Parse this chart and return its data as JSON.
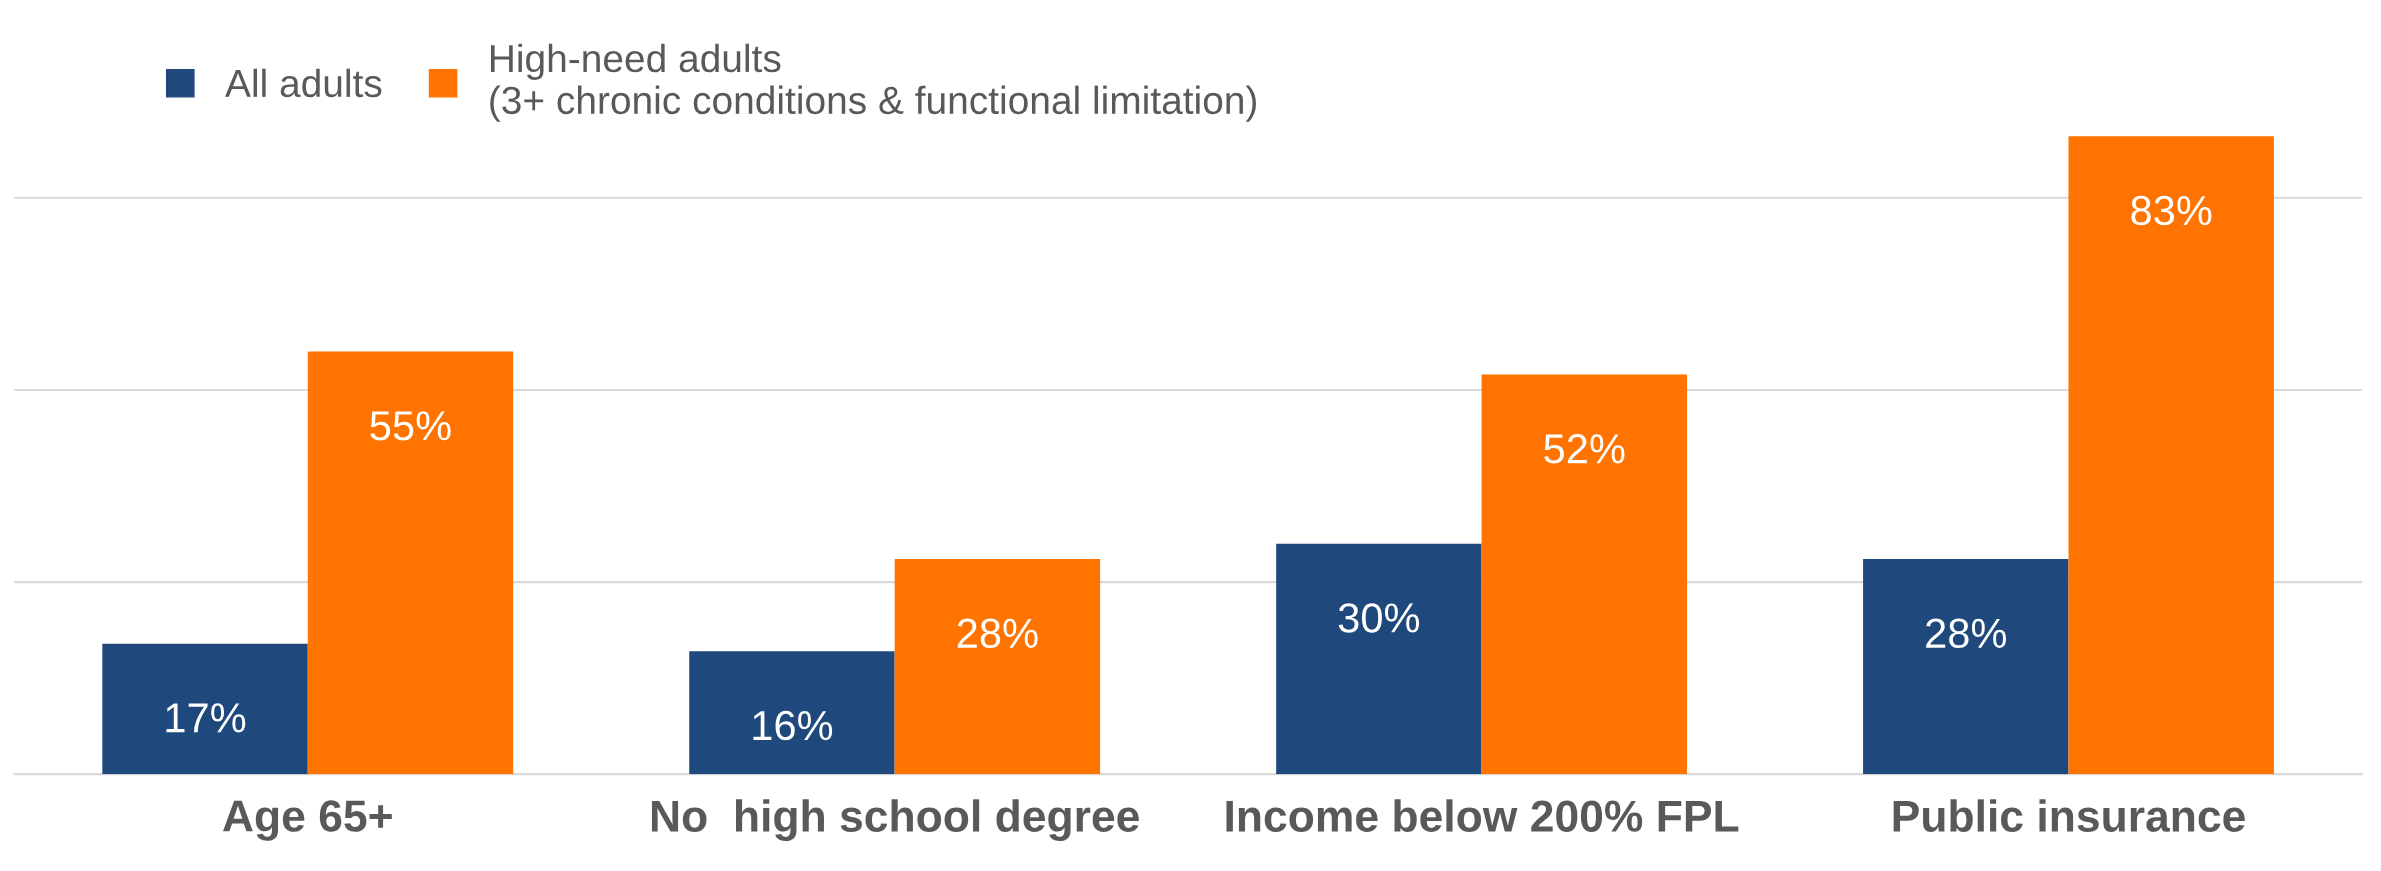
{
  "chart_data": {
    "type": "bar",
    "categories": [
      "Age 65+",
      "No  high school degree",
      "Income below 200% FPL",
      "Public insurance"
    ],
    "series": [
      {
        "name": "All adults",
        "color": "#1f497d",
        "values": [
          17,
          16,
          30,
          28
        ],
        "value_labels": [
          "17%",
          "16%",
          "30%",
          "28%"
        ]
      },
      {
        "name": "High-need adults\n(3+ chronic conditions & functional limitation)",
        "color": "#ff7400",
        "values": [
          55,
          28,
          52,
          83
        ],
        "value_labels": [
          "55%",
          "28%",
          "52%",
          "83%"
        ]
      }
    ],
    "grid": "y",
    "legend": "top left",
    "tick_labels": "x"
  }
}
